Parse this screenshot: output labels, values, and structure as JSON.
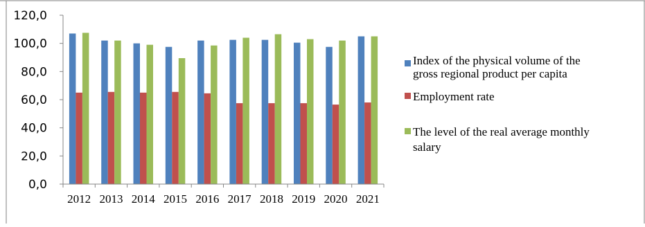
{
  "chart_data": {
    "type": "bar",
    "categories": [
      "2012",
      "2013",
      "2014",
      "2015",
      "2016",
      "2017",
      "2018",
      "2019",
      "2020",
      "2021"
    ],
    "series": [
      {
        "name": "Index of the physical volume of the gross regional product per capita",
        "legend_lines": [
          "Index of the physical volume of the",
          "gross regional product per capita"
        ],
        "color": "#4F81BD",
        "values": [
          107.0,
          102.0,
          100.0,
          97.5,
          102.0,
          102.5,
          102.5,
          100.5,
          97.5,
          105.0
        ]
      },
      {
        "name": "Employment rate",
        "legend_lines": [
          "Employment rate"
        ],
        "color": "#C0504D",
        "values": [
          65.0,
          65.5,
          65.0,
          65.5,
          64.5,
          57.5,
          57.5,
          57.5,
          56.5,
          58.0
        ]
      },
      {
        "name": "The level of the real average monthly salary",
        "legend_lines": [
          "The level of the real average monthly",
          "salary"
        ],
        "color": "#9BBB59",
        "values": [
          107.5,
          102.0,
          99.0,
          89.5,
          98.5,
          104.0,
          106.5,
          103.0,
          102.0,
          105.0
        ]
      }
    ],
    "yticks": [
      "0,0",
      "20,0",
      "40,0",
      "60,0",
      "80,0",
      "100,0",
      "120,0"
    ],
    "ylim": [
      0,
      120
    ],
    "title": "",
    "xlabel": "",
    "ylabel": "",
    "grid": false,
    "legend_position": "right"
  }
}
